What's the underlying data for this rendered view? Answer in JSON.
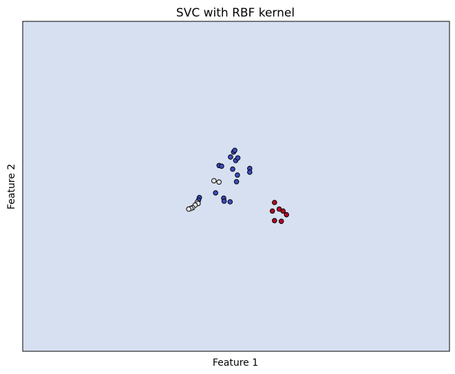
{
  "chart_data": {
    "type": "scatter",
    "title": "SVC with RBF kernel",
    "xlabel": "Feature 1",
    "ylabel": "Feature 2",
    "xlim": [
      0,
      100
    ],
    "ylim": [
      0,
      100
    ],
    "grid": false,
    "xticks": [],
    "yticks": [],
    "decision_region_color": "#d6e0f1",
    "point_edge_color": "#000000",
    "series": [
      {
        "color": "#3b4cc0",
        "points": [
          [
            49.4,
            60.4
          ],
          [
            49.7,
            60.9
          ],
          [
            48.7,
            58.9
          ],
          [
            49.9,
            57.8
          ],
          [
            50.4,
            58.6
          ],
          [
            46.0,
            56.3
          ],
          [
            46.6,
            56.1
          ],
          [
            49.2,
            55.2
          ],
          [
            53.2,
            55.4
          ],
          [
            53.2,
            54.3
          ],
          [
            50.1,
            51.4
          ],
          [
            50.3,
            53.4
          ],
          [
            45.2,
            48.0
          ],
          [
            47.1,
            46.4
          ],
          [
            47.2,
            45.5
          ],
          [
            48.6,
            45.3
          ],
          [
            41.4,
            46.6
          ],
          [
            41.2,
            45.8
          ]
        ]
      },
      {
        "color": "#e2e2e2",
        "points": [
          [
            44.8,
            51.7
          ],
          [
            46.0,
            51.3
          ],
          [
            40.9,
            45.2
          ],
          [
            41.1,
            44.8
          ],
          [
            40.4,
            44.3
          ],
          [
            39.8,
            43.5
          ],
          [
            39.4,
            43.3
          ],
          [
            38.9,
            43.1
          ]
        ]
      },
      {
        "color": "#b40426",
        "points": [
          [
            59.0,
            45.1
          ],
          [
            58.5,
            42.5
          ],
          [
            60.1,
            43.1
          ],
          [
            61.0,
            42.5
          ],
          [
            61.8,
            41.4
          ],
          [
            59.0,
            39.6
          ],
          [
            60.6,
            39.4
          ]
        ]
      }
    ]
  }
}
